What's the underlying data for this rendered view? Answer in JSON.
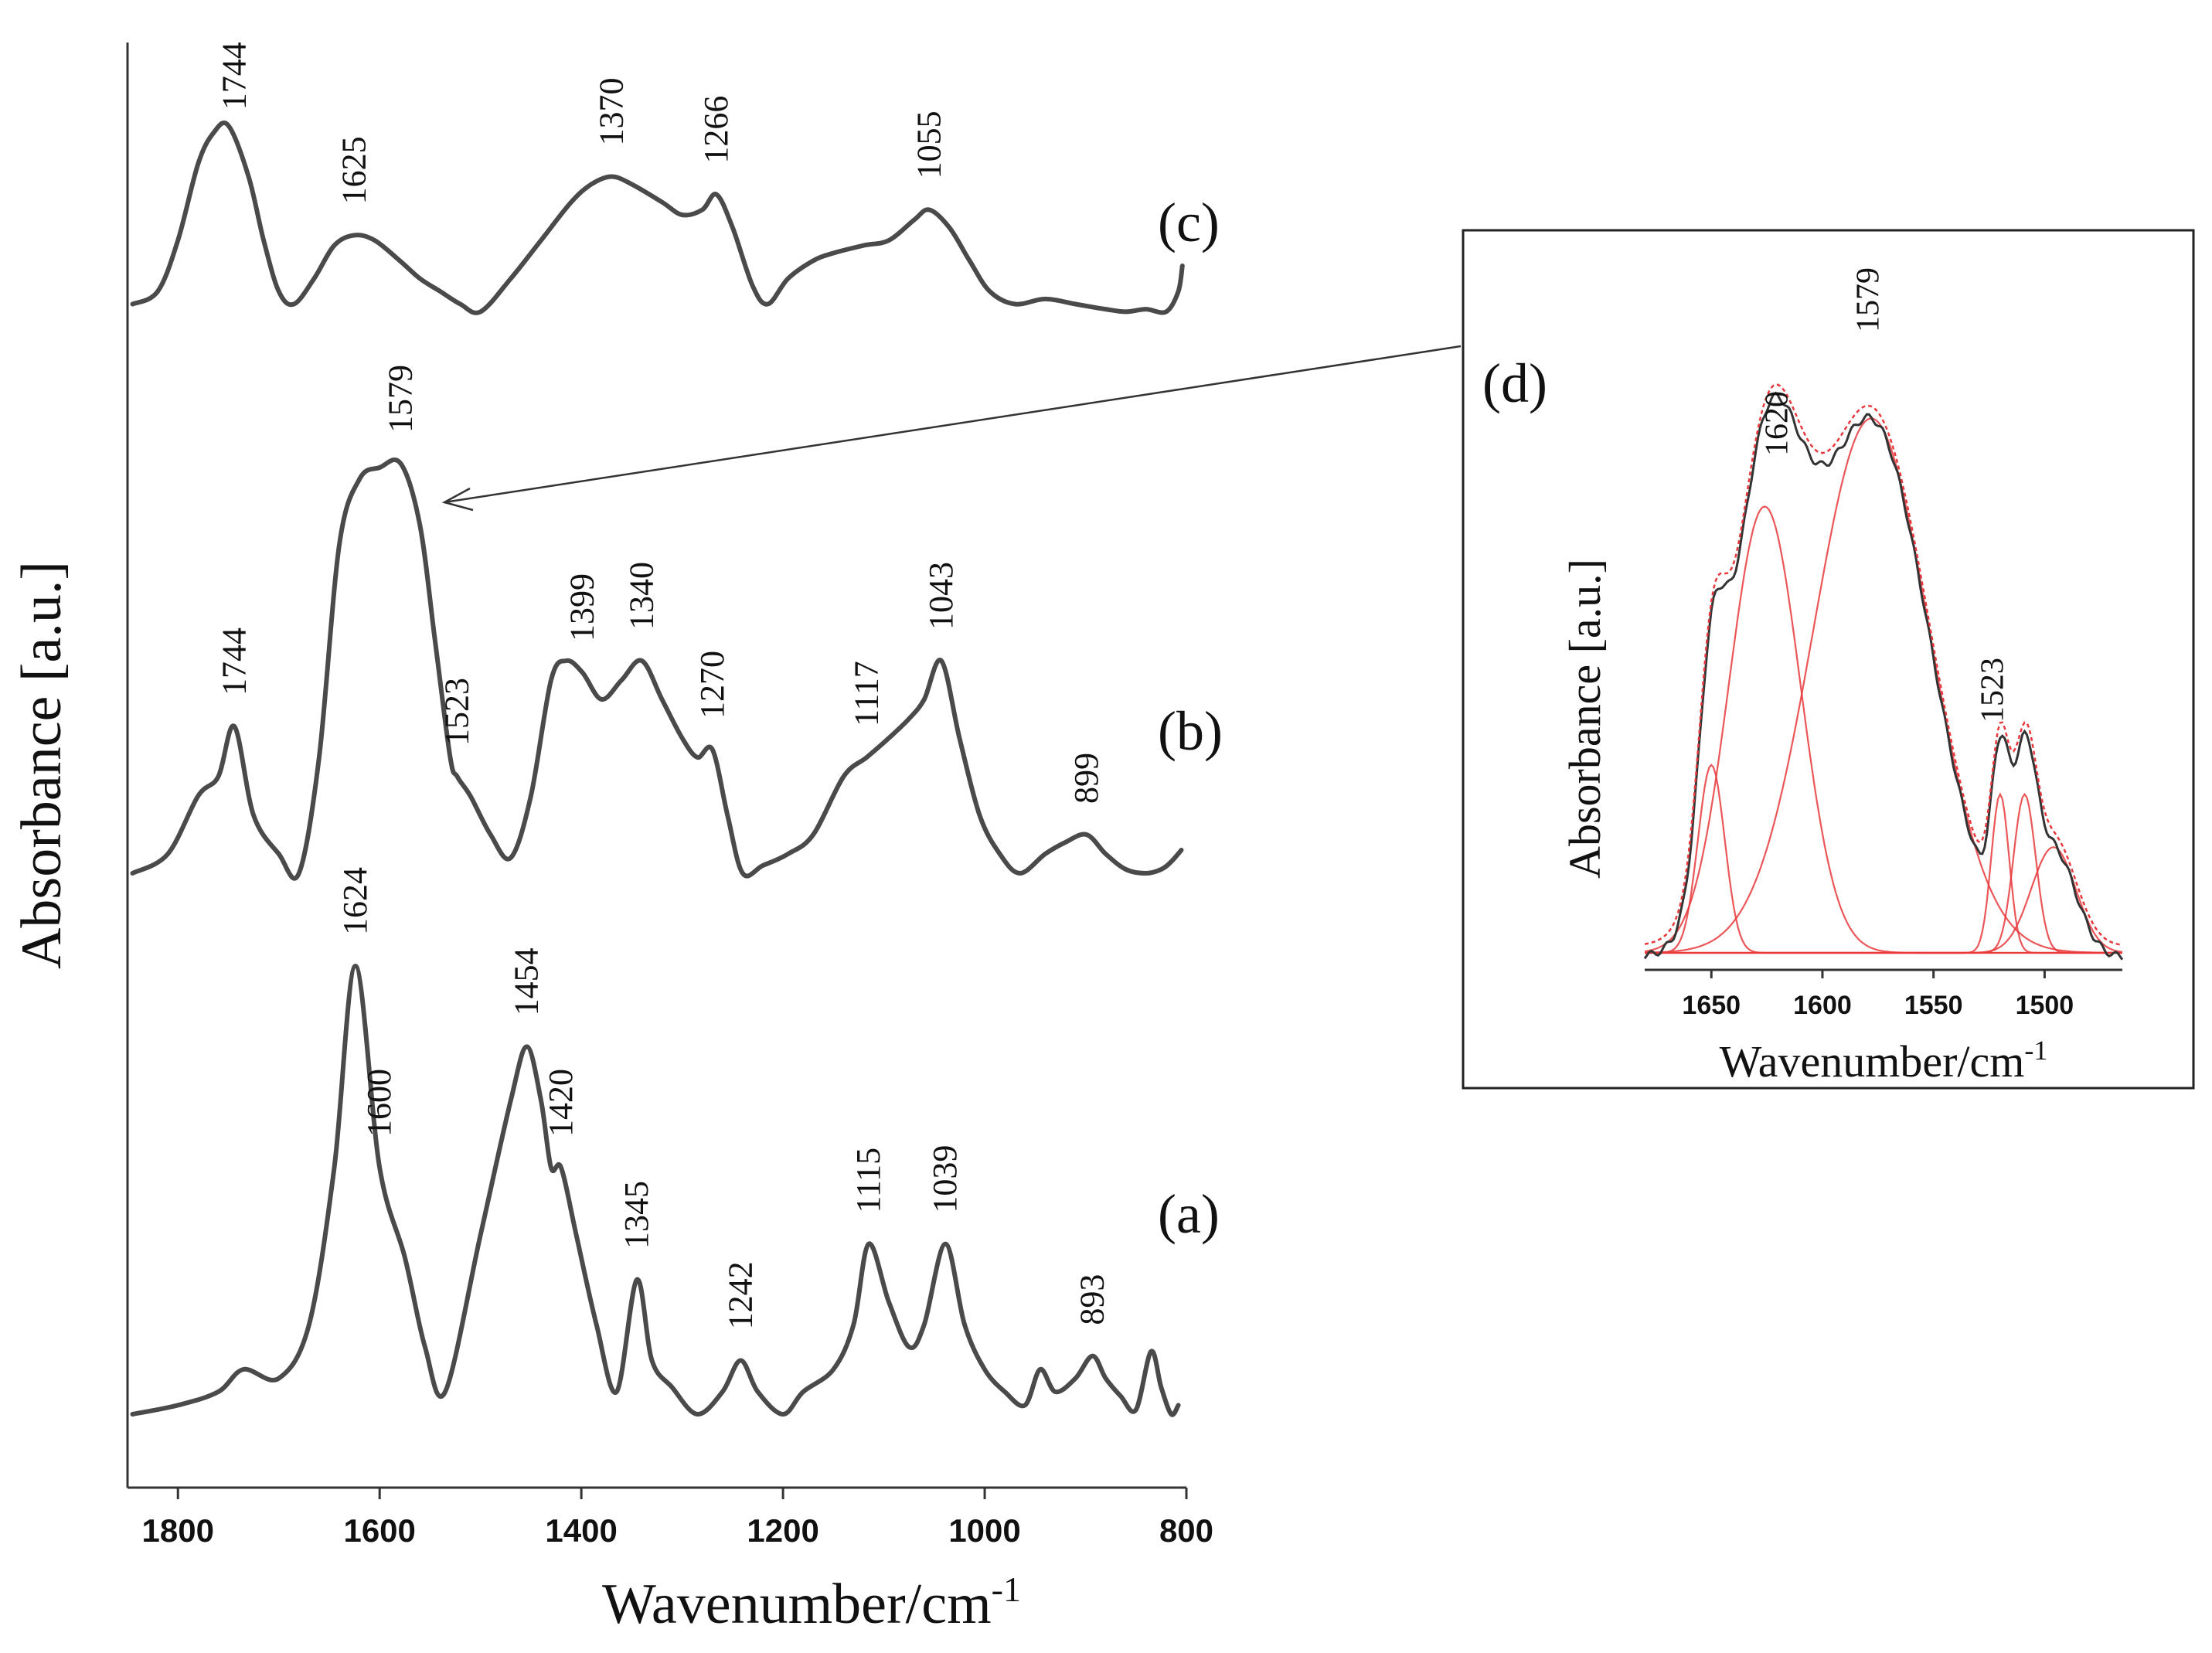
{
  "chart_data": [
    {
      "type": "line",
      "title": "",
      "xlabel": "Wavenumber/cm",
      "xlabel_sup": "-1",
      "ylabel": "Absorbance [a.u.]",
      "xlim": [
        1850,
        800
      ],
      "x_ticks": [
        1800,
        1600,
        1400,
        1200,
        1000,
        800
      ],
      "x_tick_labels": [
        "1800",
        "1600",
        "1400",
        "1200",
        "1000",
        "800"
      ],
      "grid": false,
      "series": [
        {
          "name": "(a)",
          "offset": 0.05,
          "peaks": [
            {
              "x": 1624,
              "label": "1624"
            },
            {
              "x": 1600,
              "label": "1600"
            },
            {
              "x": 1454,
              "label": "1454"
            },
            {
              "x": 1420,
              "label": "1420"
            },
            {
              "x": 1345,
              "label": "1345"
            },
            {
              "x": 1242,
              "label": "1242"
            },
            {
              "x": 1115,
              "label": "1115"
            },
            {
              "x": 1039,
              "label": "1039"
            },
            {
              "x": 893,
              "label": "893"
            }
          ],
          "points": [
            [
              1845,
              0.0
            ],
            [
              1800,
              0.02
            ],
            [
              1760,
              0.05
            ],
            [
              1735,
              0.1
            ],
            [
              1700,
              0.08
            ],
            [
              1670,
              0.2
            ],
            [
              1645,
              0.55
            ],
            [
              1624,
              1.0
            ],
            [
              1600,
              0.55
            ],
            [
              1575,
              0.35
            ],
            [
              1555,
              0.15
            ],
            [
              1535,
              0.05
            ],
            [
              1500,
              0.4
            ],
            [
              1470,
              0.7
            ],
            [
              1454,
              0.82
            ],
            [
              1440,
              0.7
            ],
            [
              1430,
              0.55
            ],
            [
              1420,
              0.55
            ],
            [
              1405,
              0.4
            ],
            [
              1385,
              0.2
            ],
            [
              1365,
              0.05
            ],
            [
              1345,
              0.3
            ],
            [
              1330,
              0.12
            ],
            [
              1310,
              0.06
            ],
            [
              1285,
              0.0
            ],
            [
              1260,
              0.05
            ],
            [
              1242,
              0.12
            ],
            [
              1225,
              0.05
            ],
            [
              1200,
              0.0
            ],
            [
              1180,
              0.05
            ],
            [
              1150,
              0.1
            ],
            [
              1130,
              0.2
            ],
            [
              1115,
              0.38
            ],
            [
              1095,
              0.25
            ],
            [
              1075,
              0.15
            ],
            [
              1060,
              0.2
            ],
            [
              1039,
              0.38
            ],
            [
              1020,
              0.2
            ],
            [
              1000,
              0.1
            ],
            [
              980,
              0.05
            ],
            [
              960,
              0.02
            ],
            [
              945,
              0.1
            ],
            [
              930,
              0.05
            ],
            [
              910,
              0.08
            ],
            [
              893,
              0.13
            ],
            [
              880,
              0.08
            ],
            [
              865,
              0.04
            ],
            [
              850,
              0.01
            ],
            [
              835,
              0.14
            ],
            [
              825,
              0.06
            ],
            [
              815,
              0.0
            ],
            [
              808,
              0.02
            ]
          ]
        },
        {
          "name": "(b)",
          "offset": 0.05,
          "peaks": [
            {
              "x": 1744,
              "label": "1744"
            },
            {
              "x": 1579,
              "label": "1579"
            },
            {
              "x": 1523,
              "label": "1523"
            },
            {
              "x": 1399,
              "label": "1399"
            },
            {
              "x": 1340,
              "label": "1340"
            },
            {
              "x": 1270,
              "label": "1270"
            },
            {
              "x": 1117,
              "label": "1117"
            },
            {
              "x": 1043,
              "label": "1043"
            },
            {
              "x": 899,
              "label": "899"
            }
          ],
          "points": [
            [
              1845,
              0.0
            ],
            [
              1810,
              0.05
            ],
            [
              1780,
              0.2
            ],
            [
              1760,
              0.25
            ],
            [
              1744,
              0.38
            ],
            [
              1725,
              0.15
            ],
            [
              1700,
              0.05
            ],
            [
              1680,
              0.0
            ],
            [
              1660,
              0.3
            ],
            [
              1640,
              0.85
            ],
            [
              1620,
              1.02
            ],
            [
              1600,
              1.05
            ],
            [
              1579,
              1.06
            ],
            [
              1560,
              0.9
            ],
            [
              1545,
              0.6
            ],
            [
              1530,
              0.3
            ],
            [
              1523,
              0.25
            ],
            [
              1510,
              0.2
            ],
            [
              1490,
              0.1
            ],
            [
              1470,
              0.04
            ],
            [
              1450,
              0.2
            ],
            [
              1430,
              0.5
            ],
            [
              1415,
              0.55
            ],
            [
              1399,
              0.52
            ],
            [
              1380,
              0.45
            ],
            [
              1360,
              0.5
            ],
            [
              1340,
              0.55
            ],
            [
              1320,
              0.45
            ],
            [
              1300,
              0.35
            ],
            [
              1285,
              0.3
            ],
            [
              1270,
              0.32
            ],
            [
              1255,
              0.15
            ],
            [
              1240,
              0.0
            ],
            [
              1220,
              0.02
            ],
            [
              1195,
              0.05
            ],
            [
              1170,
              0.1
            ],
            [
              1140,
              0.25
            ],
            [
              1117,
              0.3
            ],
            [
              1095,
              0.35
            ],
            [
              1075,
              0.4
            ],
            [
              1060,
              0.45
            ],
            [
              1043,
              0.55
            ],
            [
              1025,
              0.35
            ],
            [
              1005,
              0.15
            ],
            [
              985,
              0.05
            ],
            [
              965,
              0.0
            ],
            [
              940,
              0.05
            ],
            [
              920,
              0.08
            ],
            [
              899,
              0.1
            ],
            [
              880,
              0.05
            ],
            [
              860,
              0.01
            ],
            [
              840,
              0.0
            ],
            [
              825,
              0.01
            ],
            [
              815,
              0.03
            ],
            [
              805,
              0.06
            ]
          ]
        },
        {
          "name": "(c)",
          "offset": 0.05,
          "peaks": [
            {
              "x": 1744,
              "label": "1744"
            },
            {
              "x": 1625,
              "label": "1625"
            },
            {
              "x": 1370,
              "label": "1370"
            },
            {
              "x": 1266,
              "label": "1266"
            },
            {
              "x": 1055,
              "label": "1055"
            }
          ],
          "points": [
            [
              1845,
              0.05
            ],
            [
              1820,
              0.1
            ],
            [
              1800,
              0.3
            ],
            [
              1780,
              0.6
            ],
            [
              1765,
              0.72
            ],
            [
              1750,
              0.75
            ],
            [
              1730,
              0.55
            ],
            [
              1715,
              0.3
            ],
            [
              1700,
              0.1
            ],
            [
              1685,
              0.05
            ],
            [
              1665,
              0.15
            ],
            [
              1645,
              0.28
            ],
            [
              1625,
              0.32
            ],
            [
              1605,
              0.3
            ],
            [
              1580,
              0.22
            ],
            [
              1560,
              0.15
            ],
            [
              1540,
              0.1
            ],
            [
              1520,
              0.05
            ],
            [
              1500,
              0.02
            ],
            [
              1470,
              0.15
            ],
            [
              1440,
              0.3
            ],
            [
              1410,
              0.45
            ],
            [
              1390,
              0.52
            ],
            [
              1370,
              0.55
            ],
            [
              1350,
              0.52
            ],
            [
              1320,
              0.45
            ],
            [
              1300,
              0.4
            ],
            [
              1280,
              0.42
            ],
            [
              1266,
              0.48
            ],
            [
              1250,
              0.35
            ],
            [
              1230,
              0.12
            ],
            [
              1215,
              0.05
            ],
            [
              1195,
              0.15
            ],
            [
              1170,
              0.22
            ],
            [
              1150,
              0.25
            ],
            [
              1120,
              0.28
            ],
            [
              1095,
              0.3
            ],
            [
              1070,
              0.38
            ],
            [
              1055,
              0.42
            ],
            [
              1035,
              0.35
            ],
            [
              1015,
              0.22
            ],
            [
              995,
              0.1
            ],
            [
              970,
              0.05
            ],
            [
              940,
              0.07
            ],
            [
              910,
              0.05
            ],
            [
              880,
              0.03
            ],
            [
              860,
              0.02
            ],
            [
              840,
              0.03
            ],
            [
              820,
              0.02
            ],
            [
              808,
              0.1
            ],
            [
              804,
              0.2
            ]
          ]
        }
      ],
      "annotations": [
        {
          "text": "(a)",
          "target": "series a"
        },
        {
          "text": "(b)",
          "target": "series b"
        },
        {
          "text": "(c)",
          "target": "series c"
        }
      ]
    },
    {
      "type": "line",
      "panel": "(d)",
      "title": "(d)",
      "xlabel": "Wavenumber/cm",
      "xlabel_sup": "-1",
      "ylabel": "Absorbance [a.u.]",
      "xlim": [
        1680,
        1465
      ],
      "x_ticks": [
        1650,
        1600,
        1550,
        1500
      ],
      "x_tick_labels": [
        "1650",
        "1600",
        "1550",
        "1500"
      ],
      "peak_labels": [
        {
          "x": 1620,
          "label": "1620"
        },
        {
          "x": 1579,
          "label": "1579"
        },
        {
          "x": 1523,
          "label": "1523"
        }
      ],
      "fit_components": [
        {
          "center": 1650,
          "height": 0.32,
          "width": 6
        },
        {
          "center": 1626,
          "height": 0.76,
          "width": 16
        },
        {
          "center": 1578,
          "height": 0.91,
          "width": 26
        },
        {
          "center": 1520,
          "height": 0.27,
          "width": 4
        },
        {
          "center": 1509,
          "height": 0.27,
          "width": 5
        },
        {
          "center": 1496,
          "height": 0.18,
          "width": 10
        }
      ],
      "colors": {
        "fit": "#e8383c",
        "experimental": "#333333"
      }
    }
  ],
  "arrow": {
    "from": "inset (d)",
    "to": "peak 1579 of (b)"
  }
}
